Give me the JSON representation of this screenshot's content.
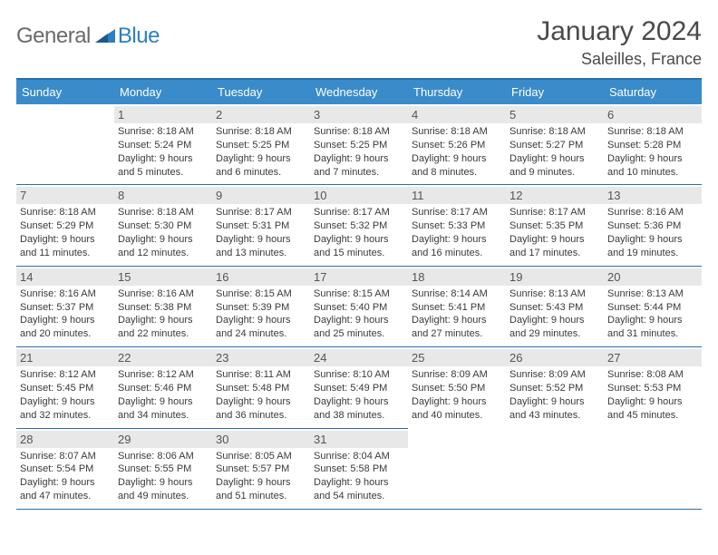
{
  "brand": {
    "word1": "General",
    "word2": "Blue"
  },
  "title": "January 2024",
  "location": "Saleilles, France",
  "colors": {
    "header_bg": "#3a8bc9",
    "header_border": "#2b6fa8",
    "daynum_bg": "#e8e8e8"
  },
  "weekdays": [
    "Sunday",
    "Monday",
    "Tuesday",
    "Wednesday",
    "Thursday",
    "Friday",
    "Saturday"
  ],
  "weeks": [
    [
      null,
      {
        "n": "1",
        "sunrise": "Sunrise: 8:18 AM",
        "sunset": "Sunset: 5:24 PM",
        "day1": "Daylight: 9 hours",
        "day2": "and 5 minutes."
      },
      {
        "n": "2",
        "sunrise": "Sunrise: 8:18 AM",
        "sunset": "Sunset: 5:25 PM",
        "day1": "Daylight: 9 hours",
        "day2": "and 6 minutes."
      },
      {
        "n": "3",
        "sunrise": "Sunrise: 8:18 AM",
        "sunset": "Sunset: 5:25 PM",
        "day1": "Daylight: 9 hours",
        "day2": "and 7 minutes."
      },
      {
        "n": "4",
        "sunrise": "Sunrise: 8:18 AM",
        "sunset": "Sunset: 5:26 PM",
        "day1": "Daylight: 9 hours",
        "day2": "and 8 minutes."
      },
      {
        "n": "5",
        "sunrise": "Sunrise: 8:18 AM",
        "sunset": "Sunset: 5:27 PM",
        "day1": "Daylight: 9 hours",
        "day2": "and 9 minutes."
      },
      {
        "n": "6",
        "sunrise": "Sunrise: 8:18 AM",
        "sunset": "Sunset: 5:28 PM",
        "day1": "Daylight: 9 hours",
        "day2": "and 10 minutes."
      }
    ],
    [
      {
        "n": "7",
        "sunrise": "Sunrise: 8:18 AM",
        "sunset": "Sunset: 5:29 PM",
        "day1": "Daylight: 9 hours",
        "day2": "and 11 minutes."
      },
      {
        "n": "8",
        "sunrise": "Sunrise: 8:18 AM",
        "sunset": "Sunset: 5:30 PM",
        "day1": "Daylight: 9 hours",
        "day2": "and 12 minutes."
      },
      {
        "n": "9",
        "sunrise": "Sunrise: 8:17 AM",
        "sunset": "Sunset: 5:31 PM",
        "day1": "Daylight: 9 hours",
        "day2": "and 13 minutes."
      },
      {
        "n": "10",
        "sunrise": "Sunrise: 8:17 AM",
        "sunset": "Sunset: 5:32 PM",
        "day1": "Daylight: 9 hours",
        "day2": "and 15 minutes."
      },
      {
        "n": "11",
        "sunrise": "Sunrise: 8:17 AM",
        "sunset": "Sunset: 5:33 PM",
        "day1": "Daylight: 9 hours",
        "day2": "and 16 minutes."
      },
      {
        "n": "12",
        "sunrise": "Sunrise: 8:17 AM",
        "sunset": "Sunset: 5:35 PM",
        "day1": "Daylight: 9 hours",
        "day2": "and 17 minutes."
      },
      {
        "n": "13",
        "sunrise": "Sunrise: 8:16 AM",
        "sunset": "Sunset: 5:36 PM",
        "day1": "Daylight: 9 hours",
        "day2": "and 19 minutes."
      }
    ],
    [
      {
        "n": "14",
        "sunrise": "Sunrise: 8:16 AM",
        "sunset": "Sunset: 5:37 PM",
        "day1": "Daylight: 9 hours",
        "day2": "and 20 minutes."
      },
      {
        "n": "15",
        "sunrise": "Sunrise: 8:16 AM",
        "sunset": "Sunset: 5:38 PM",
        "day1": "Daylight: 9 hours",
        "day2": "and 22 minutes."
      },
      {
        "n": "16",
        "sunrise": "Sunrise: 8:15 AM",
        "sunset": "Sunset: 5:39 PM",
        "day1": "Daylight: 9 hours",
        "day2": "and 24 minutes."
      },
      {
        "n": "17",
        "sunrise": "Sunrise: 8:15 AM",
        "sunset": "Sunset: 5:40 PM",
        "day1": "Daylight: 9 hours",
        "day2": "and 25 minutes."
      },
      {
        "n": "18",
        "sunrise": "Sunrise: 8:14 AM",
        "sunset": "Sunset: 5:41 PM",
        "day1": "Daylight: 9 hours",
        "day2": "and 27 minutes."
      },
      {
        "n": "19",
        "sunrise": "Sunrise: 8:13 AM",
        "sunset": "Sunset: 5:43 PM",
        "day1": "Daylight: 9 hours",
        "day2": "and 29 minutes."
      },
      {
        "n": "20",
        "sunrise": "Sunrise: 8:13 AM",
        "sunset": "Sunset: 5:44 PM",
        "day1": "Daylight: 9 hours",
        "day2": "and 31 minutes."
      }
    ],
    [
      {
        "n": "21",
        "sunrise": "Sunrise: 8:12 AM",
        "sunset": "Sunset: 5:45 PM",
        "day1": "Daylight: 9 hours",
        "day2": "and 32 minutes."
      },
      {
        "n": "22",
        "sunrise": "Sunrise: 8:12 AM",
        "sunset": "Sunset: 5:46 PM",
        "day1": "Daylight: 9 hours",
        "day2": "and 34 minutes."
      },
      {
        "n": "23",
        "sunrise": "Sunrise: 8:11 AM",
        "sunset": "Sunset: 5:48 PM",
        "day1": "Daylight: 9 hours",
        "day2": "and 36 minutes."
      },
      {
        "n": "24",
        "sunrise": "Sunrise: 8:10 AM",
        "sunset": "Sunset: 5:49 PM",
        "day1": "Daylight: 9 hours",
        "day2": "and 38 minutes."
      },
      {
        "n": "25",
        "sunrise": "Sunrise: 8:09 AM",
        "sunset": "Sunset: 5:50 PM",
        "day1": "Daylight: 9 hours",
        "day2": "and 40 minutes."
      },
      {
        "n": "26",
        "sunrise": "Sunrise: 8:09 AM",
        "sunset": "Sunset: 5:52 PM",
        "day1": "Daylight: 9 hours",
        "day2": "and 43 minutes."
      },
      {
        "n": "27",
        "sunrise": "Sunrise: 8:08 AM",
        "sunset": "Sunset: 5:53 PM",
        "day1": "Daylight: 9 hours",
        "day2": "and 45 minutes."
      }
    ],
    [
      {
        "n": "28",
        "sunrise": "Sunrise: 8:07 AM",
        "sunset": "Sunset: 5:54 PM",
        "day1": "Daylight: 9 hours",
        "day2": "and 47 minutes."
      },
      {
        "n": "29",
        "sunrise": "Sunrise: 8:06 AM",
        "sunset": "Sunset: 5:55 PM",
        "day1": "Daylight: 9 hours",
        "day2": "and 49 minutes."
      },
      {
        "n": "30",
        "sunrise": "Sunrise: 8:05 AM",
        "sunset": "Sunset: 5:57 PM",
        "day1": "Daylight: 9 hours",
        "day2": "and 51 minutes."
      },
      {
        "n": "31",
        "sunrise": "Sunrise: 8:04 AM",
        "sunset": "Sunset: 5:58 PM",
        "day1": "Daylight: 9 hours",
        "day2": "and 54 minutes."
      },
      null,
      null,
      null
    ]
  ]
}
